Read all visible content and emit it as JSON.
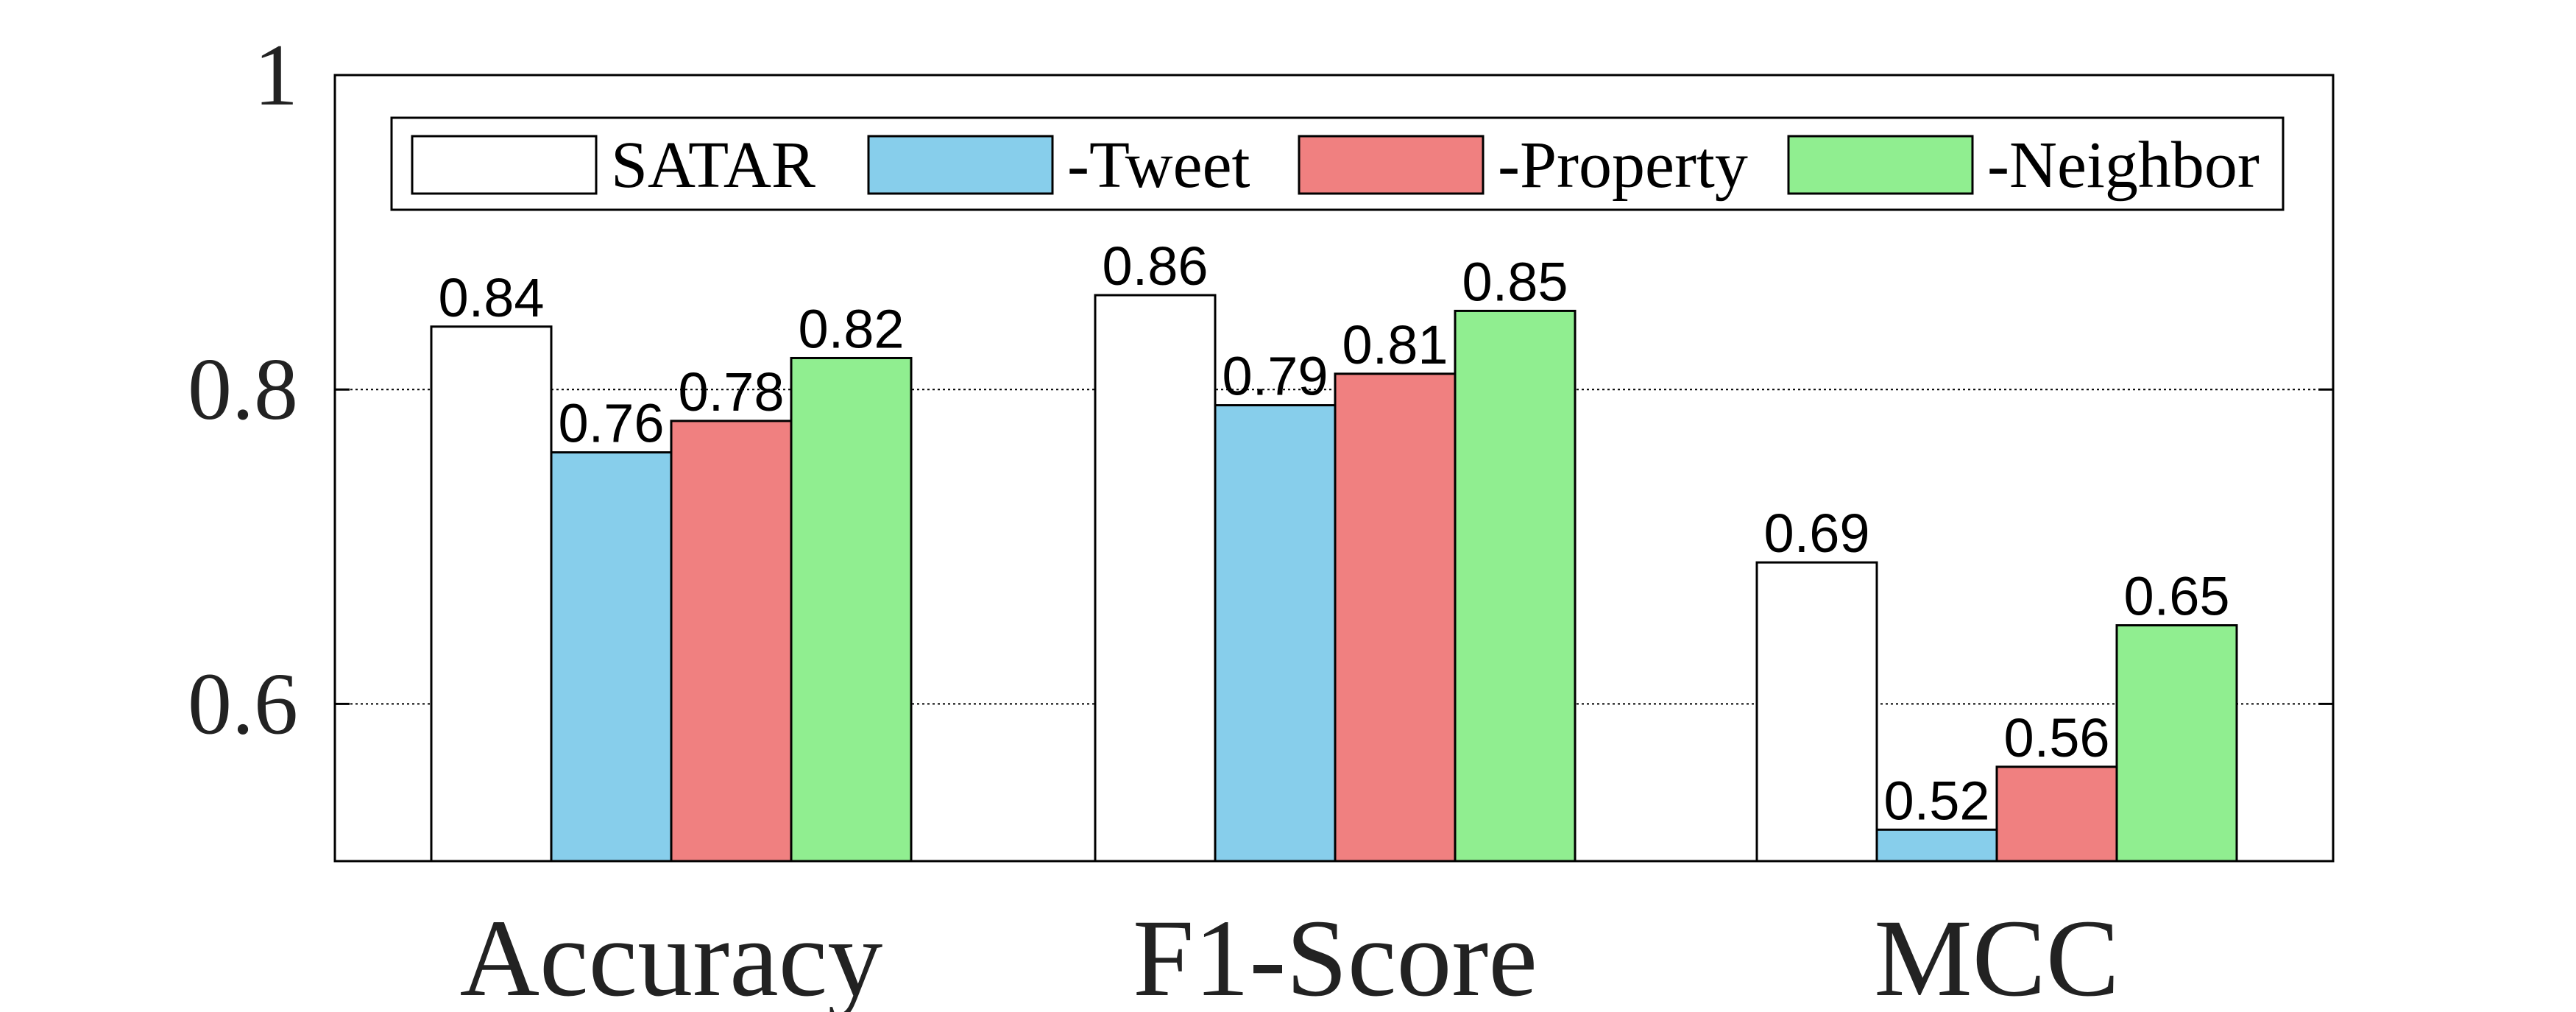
{
  "chart_data": {
    "type": "bar",
    "categories": [
      "Accuracy",
      "F1-Score",
      "MCC"
    ],
    "series": [
      {
        "name": "SATAR",
        "values": [
          0.84,
          0.86,
          0.69
        ],
        "labels": [
          "0.84",
          "0.86",
          "0.69"
        ],
        "color": "#ffffff"
      },
      {
        "name": "-Tweet",
        "values": [
          0.76,
          0.79,
          0.52
        ],
        "labels": [
          "0.76",
          "0.79",
          "0.52"
        ],
        "color": "#87ceeb"
      },
      {
        "name": "-Property",
        "values": [
          0.78,
          0.81,
          0.56
        ],
        "labels": [
          "0.78",
          "0.81",
          "0.56"
        ],
        "color": "#f08080"
      },
      {
        "name": "-Neighbor",
        "values": [
          0.82,
          0.85,
          0.65
        ],
        "labels": [
          "0.82",
          "0.85",
          "0.65"
        ],
        "color": "#90ee90"
      }
    ],
    "ylim": [
      0.5,
      1.0
    ],
    "yticks": [
      0.6,
      0.8,
      1.0
    ],
    "ytick_labels": [
      "0.6",
      "0.8",
      "1"
    ],
    "grid": "horizontal dotted",
    "legend_position": "top",
    "title": "",
    "xlabel": "",
    "ylabel": ""
  }
}
